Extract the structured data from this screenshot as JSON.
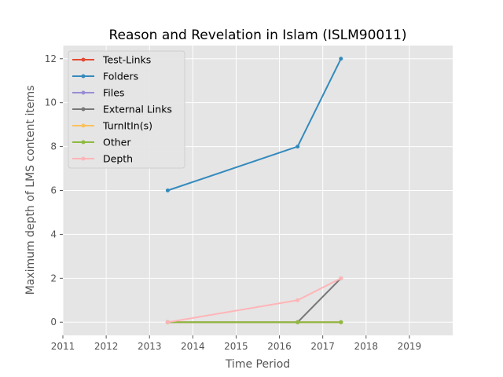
{
  "chart_data": {
    "type": "line",
    "title": "Reason and Revelation in Islam (ISLM90011)",
    "xlabel": "Time Period",
    "ylabel": "Maximum depth of LMS content items",
    "xlim": [
      2011,
      2020
    ],
    "ylim": [
      -0.6,
      12.6
    ],
    "xticks": [
      2011,
      2012,
      2013,
      2014,
      2015,
      2016,
      2017,
      2018,
      2019
    ],
    "xtick_labels": [
      "2011",
      "2012",
      "2013",
      "2014",
      "2015",
      "2016",
      "2017",
      "2018",
      "2019"
    ],
    "yticks": [
      0,
      2,
      4,
      6,
      8,
      10,
      12
    ],
    "ytick_labels": [
      "0",
      "2",
      "4",
      "6",
      "8",
      "10",
      "12"
    ],
    "grid": true,
    "legend_position": "top-left",
    "x": [
      2013.42,
      2016.42,
      2017.42
    ],
    "series": [
      {
        "name": "Test-Links",
        "color": "#E24A33",
        "values": [
          0,
          0,
          0
        ]
      },
      {
        "name": "Folders",
        "color": "#348ABD",
        "values": [
          6,
          8,
          12
        ]
      },
      {
        "name": "Files",
        "color": "#988ED5",
        "values": [
          0,
          0,
          0
        ]
      },
      {
        "name": "External Links",
        "color": "#777777",
        "values": [
          0,
          0,
          2
        ]
      },
      {
        "name": "TurnItIn(s)",
        "color": "#FBC15E",
        "values": [
          0,
          0,
          0
        ]
      },
      {
        "name": "Other",
        "color": "#8EBA42",
        "values": [
          0,
          0,
          0
        ]
      },
      {
        "name": "Depth",
        "color": "#FFB5B8",
        "values": [
          0,
          1,
          2
        ]
      }
    ]
  }
}
